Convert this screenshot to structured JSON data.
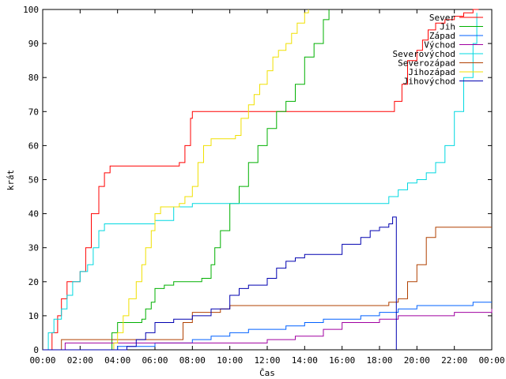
{
  "chart_data": {
    "type": "line",
    "xlabel": "Čas",
    "ylabel": "krát",
    "xlim": [
      0,
      24
    ],
    "ylim": [
      0,
      100
    ],
    "x_ticks": [
      0,
      2,
      4,
      6,
      8,
      10,
      12,
      14,
      16,
      18,
      20,
      22,
      24
    ],
    "x_tick_labels": [
      "00:00",
      "02:00",
      "04:00",
      "06:00",
      "08:00",
      "10:00",
      "12:00",
      "14:00",
      "16:00",
      "18:00",
      "20:00",
      "22:00",
      "00:00"
    ],
    "y_ticks": [
      0,
      10,
      20,
      30,
      40,
      50,
      60,
      70,
      80,
      90,
      100
    ],
    "grid": false,
    "legend_position": "top-right",
    "series": [
      {
        "name": "Sever",
        "color": "#ff0000",
        "x": [
          0,
          0.3,
          0.5,
          0.8,
          1.0,
          1.3,
          1.5,
          2.0,
          2.3,
          2.6,
          3.0,
          3.3,
          3.6,
          4.0,
          5.0,
          6.0,
          7.0,
          7.3,
          7.6,
          7.9,
          8.0,
          9.0,
          12.0,
          15.0,
          18.0,
          18.5,
          18.8,
          19.2,
          19.5,
          20.0,
          20.3,
          20.6,
          21.0,
          21.5,
          22.0,
          22.5,
          23.0,
          23.3
        ],
        "y": [
          0,
          0,
          5,
          10,
          15,
          20,
          20,
          23,
          30,
          40,
          48,
          52,
          54,
          54,
          54,
          54,
          54,
          55,
          60,
          68,
          70,
          70,
          70,
          70,
          70,
          70,
          73,
          78,
          85,
          88,
          91,
          94,
          96,
          97,
          98,
          99,
          100,
          100
        ]
      },
      {
        "name": "Jih",
        "color": "#00b000",
        "x": [
          0,
          3.5,
          3.7,
          4.0,
          4.5,
          5.0,
          5.3,
          5.5,
          5.8,
          6.0,
          6.5,
          7.0,
          7.5,
          8.0,
          8.5,
          9.0,
          9.2,
          9.5,
          10.0,
          10.5,
          11.0,
          11.5,
          12.0,
          12.5,
          13.0,
          13.5,
          14.0,
          14.5,
          15.0,
          15.3
        ],
        "y": [
          0,
          0,
          5,
          8,
          8,
          8,
          9,
          12,
          14,
          18,
          19,
          20,
          20,
          20,
          21,
          25,
          30,
          35,
          43,
          48,
          55,
          60,
          65,
          70,
          73,
          78,
          86,
          90,
          97,
          100
        ]
      },
      {
        "name": "Západ",
        "color": "#0060ff",
        "x": [
          0,
          4.0,
          5.0,
          6.0,
          7.0,
          8.0,
          9.0,
          10.0,
          11.0,
          12.0,
          13.0,
          14.0,
          15.0,
          16.0,
          17.0,
          18.0,
          19.0,
          20.0,
          21.0,
          22.0,
          23.0,
          24.0
        ],
        "y": [
          0,
          1,
          1,
          2,
          2,
          3,
          4,
          5,
          6,
          6,
          7,
          8,
          9,
          9,
          10,
          11,
          12,
          13,
          13,
          13,
          14,
          14
        ]
      },
      {
        "name": "Východ",
        "color": "#a000a0",
        "x": [
          0,
          1.2,
          4.0,
          8.0,
          10.0,
          12.0,
          13.5,
          15.0,
          16.0,
          18.0,
          19.0,
          20.0,
          21.0,
          22.0,
          24.0
        ],
        "y": [
          0,
          2,
          2,
          2,
          2,
          3,
          4,
          6,
          8,
          9,
          10,
          10,
          10,
          11,
          12
        ]
      },
      {
        "name": "Severovýchod",
        "color": "#00d8e0",
        "x": [
          0,
          0.3,
          0.6,
          1.0,
          1.3,
          1.6,
          2.0,
          2.4,
          2.7,
          3.0,
          3.3,
          4.0,
          5.0,
          6.0,
          7.0,
          8.0,
          9.0,
          12.0,
          15.0,
          18.0,
          18.5,
          19.0,
          19.5,
          20.0,
          20.5,
          21.0,
          21.5,
          22.0,
          22.5,
          23.0,
          23.2
        ],
        "y": [
          0,
          5,
          9,
          12,
          16,
          20,
          23,
          25,
          30,
          35,
          37,
          37,
          37,
          38,
          42,
          43,
          43,
          43,
          43,
          43,
          45,
          47,
          49,
          50,
          52,
          55,
          60,
          70,
          80,
          90,
          99
        ]
      },
      {
        "name": "Severozápad",
        "color": "#b04000",
        "x": [
          0,
          1.0,
          4.0,
          5.0,
          6.0,
          7.0,
          7.5,
          8.0,
          9.0,
          9.5,
          10.0,
          11.0,
          12.0,
          14.0,
          16.0,
          18.0,
          18.5,
          19.0,
          19.5,
          20.0,
          20.5,
          21.0,
          24.0
        ],
        "y": [
          0,
          3,
          3,
          3,
          3,
          3,
          8,
          11,
          11,
          12,
          13,
          13,
          13,
          13,
          13,
          13,
          14,
          15,
          20,
          25,
          33,
          36,
          36
        ]
      },
      {
        "name": "Jihozápad",
        "color": "#f0e000",
        "x": [
          0,
          3.6,
          3.8,
          4.0,
          4.3,
          4.6,
          5.0,
          5.3,
          5.5,
          5.8,
          6.0,
          6.3,
          6.6,
          7.0,
          7.3,
          7.6,
          8.0,
          8.3,
          8.6,
          9.0,
          9.5,
          10.0,
          10.3,
          10.6,
          11.0,
          11.3,
          11.6,
          12.0,
          12.3,
          12.6,
          13.0,
          13.3,
          13.6,
          14.0,
          14.2
        ],
        "y": [
          0,
          0,
          2,
          5,
          10,
          15,
          20,
          25,
          30,
          35,
          40,
          42,
          42,
          42,
          43,
          45,
          48,
          55,
          60,
          62,
          62,
          62,
          63,
          68,
          72,
          75,
          78,
          82,
          86,
          88,
          90,
          93,
          96,
          99,
          100
        ]
      },
      {
        "name": "Jihovýchod",
        "color": "#0000b0",
        "x": [
          0,
          4.5,
          5.0,
          5.5,
          6.0,
          7.0,
          8.0,
          9.0,
          10.0,
          10.5,
          11.0,
          12.0,
          12.5,
          13.0,
          13.5,
          14.0,
          15.0,
          16.0,
          17.0,
          17.5,
          18.0,
          18.5,
          18.7,
          18.9,
          18.9
        ],
        "y": [
          0,
          1,
          3,
          5,
          8,
          9,
          10,
          12,
          16,
          18,
          19,
          21,
          24,
          26,
          27,
          28,
          28,
          31,
          33,
          35,
          36,
          37,
          39,
          39,
          0
        ]
      }
    ]
  }
}
